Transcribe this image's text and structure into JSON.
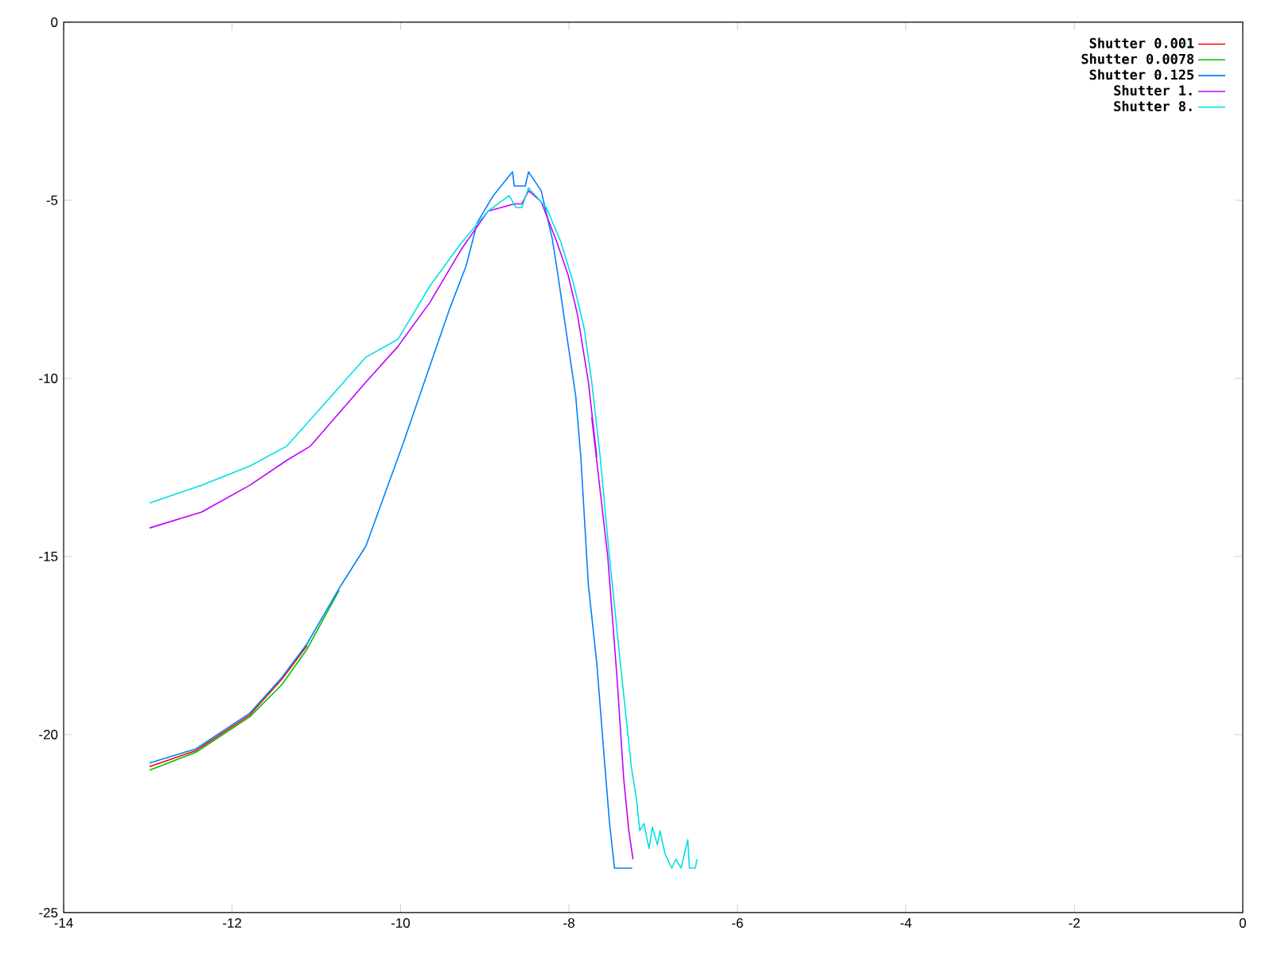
{
  "chart_data": {
    "type": "line",
    "xlim": [
      -14,
      0
    ],
    "ylim": [
      -25,
      0
    ],
    "xticks": [
      -14,
      -12,
      -10,
      -8,
      -6,
      -4,
      -2,
      0
    ],
    "yticks": [
      -25,
      -20,
      -15,
      -10,
      -5,
      0
    ],
    "grid": false,
    "legend": "top right",
    "marker": "none",
    "line_style": "solid",
    "series": [
      {
        "name": "Shutter 0.001",
        "color": "#ff0000",
        "x": [
          -12.98,
          -12.43,
          -11.79,
          -11.41,
          -11.11
        ],
        "values": [
          -20.9,
          -20.45,
          -19.45,
          -18.45,
          -17.5
        ]
      },
      {
        "name": "Shutter 0.0078",
        "color": "#00c000",
        "x": [
          -12.98,
          -12.43,
          -11.79,
          -11.41,
          -11.11,
          -10.73
        ],
        "values": [
          -21.0,
          -20.5,
          -19.5,
          -18.6,
          -17.6,
          -15.95
        ]
      },
      {
        "name": "Shutter 0.125",
        "color": "#0080ff",
        "x": [
          -12.98,
          -12.43,
          -11.79,
          -11.41,
          -11.11,
          -10.73,
          -10.41,
          -9.98,
          -9.65,
          -9.41,
          -9.22,
          -9.09,
          -8.9,
          -8.67,
          -8.65,
          -8.52,
          -8.48,
          -8.33,
          -8.2,
          -8.14,
          -8.01,
          -7.92,
          -7.86,
          -7.77,
          -7.67,
          -7.58,
          -7.52,
          -7.46,
          -7.25
        ],
        "values": [
          -20.8,
          -20.4,
          -19.4,
          -18.4,
          -17.45,
          -15.9,
          -14.7,
          -11.9,
          -9.64,
          -8.0,
          -6.83,
          -5.63,
          -4.87,
          -4.2,
          -4.6,
          -4.6,
          -4.2,
          -4.73,
          -6.07,
          -6.96,
          -9.06,
          -10.5,
          -12.2,
          -15.8,
          -18.0,
          -20.7,
          -22.45,
          -23.75,
          -23.75
        ]
      },
      {
        "name": "Shutter 1.",
        "color": "#c000ff",
        "x": [
          -12.98,
          -12.36,
          -11.79,
          -11.35,
          -11.07,
          -10.41,
          -10.03,
          -9.65,
          -9.28,
          -8.96,
          -8.65,
          -8.56,
          -8.48,
          -8.33,
          -8.14,
          -8.01,
          -7.9,
          -7.77,
          -7.67,
          -7.73,
          -7.54,
          -7.43,
          -7.35,
          -7.29,
          -7.24
        ],
        "values": [
          -14.2,
          -13.75,
          -13.0,
          -12.3,
          -11.9,
          -10.1,
          -9.1,
          -7.86,
          -6.38,
          -5.3,
          -5.1,
          -5.1,
          -4.73,
          -5.04,
          -6.2,
          -7.1,
          -8.2,
          -10.1,
          -12.2,
          -11.1,
          -15.0,
          -18.4,
          -21.25,
          -22.7,
          -23.5
        ]
      },
      {
        "name": "Shutter 8.",
        "color": "#00e0e0",
        "x": [
          -12.98,
          -12.36,
          -11.79,
          -11.35,
          -10.41,
          -10.03,
          -9.65,
          -9.28,
          -8.96,
          -8.71,
          -8.63,
          -8.56,
          -8.48,
          -8.27,
          -8.1,
          -7.95,
          -7.82,
          -7.73,
          -7.63,
          -7.52,
          -7.39,
          -7.26,
          -7.2,
          -7.16,
          -7.11,
          -7.05,
          -7.01,
          -6.95,
          -6.92,
          -6.86,
          -6.78,
          -6.73,
          -6.67,
          -6.59,
          -6.57,
          -6.5,
          -6.48
        ],
        "values": [
          -13.5,
          -13.0,
          -12.46,
          -11.9,
          -9.4,
          -8.9,
          -7.4,
          -6.2,
          -5.3,
          -4.87,
          -5.2,
          -5.2,
          -4.65,
          -5.2,
          -6.15,
          -7.3,
          -8.6,
          -10.1,
          -12.2,
          -15.0,
          -18.0,
          -20.9,
          -21.8,
          -22.7,
          -22.5,
          -23.2,
          -22.6,
          -23.1,
          -22.7,
          -23.35,
          -23.75,
          -23.5,
          -23.75,
          -22.95,
          -23.75,
          -23.75,
          -23.5
        ]
      }
    ]
  }
}
